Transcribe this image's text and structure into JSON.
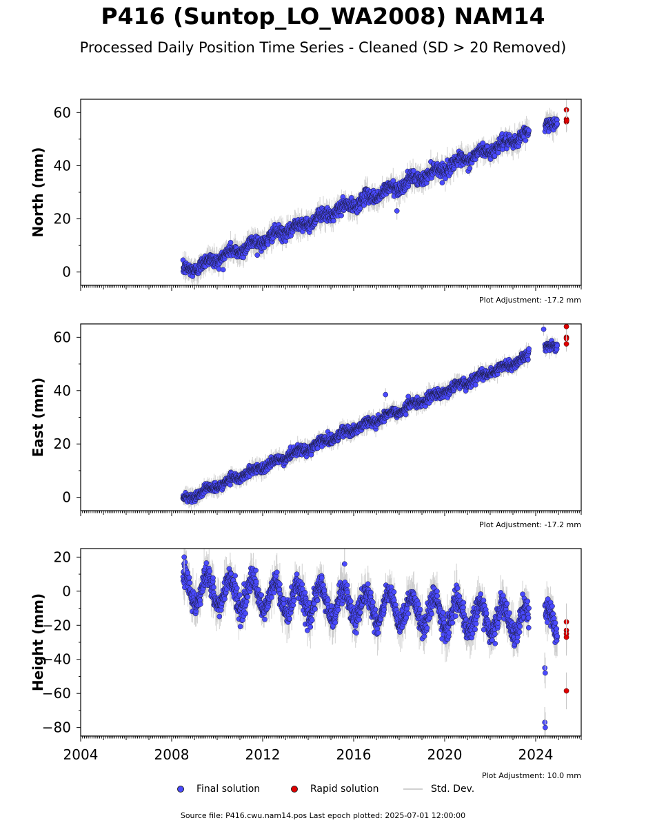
{
  "header": {
    "title": "P416 (Suntop_LO_WA2008) NAM14",
    "subtitle": "Processed Daily Position Time Series - Cleaned (SD > 20 Removed)"
  },
  "legend": {
    "final": "Final solution",
    "rapid": "Rapid solution",
    "std": "Std. Dev."
  },
  "source": "Source file: P416.cwu.nam14.pos  Last epoch plotted: 2025-07-01 12:00:00",
  "colors": {
    "final": "#4a4aff",
    "rapid": "#e00000",
    "std": "#c8c8c8"
  },
  "chart_data": [
    {
      "type": "scatter",
      "ylabel": "North (mm)",
      "xlim": [
        2004,
        2026
      ],
      "ylim": [
        -5,
        65
      ],
      "yticks": [
        0,
        20,
        40,
        60
      ],
      "adjustment": "Plot Adjustment: -17.2 mm",
      "final_trend": {
        "x_start": 2008.5,
        "y_start": 0,
        "x_end": 2024.9,
        "y_end": 56
      },
      "final_range": [
        2008.5,
        2024.95
      ],
      "gap": [
        2023.7,
        2024.4
      ],
      "noise_mm": 2.2,
      "seasonal_mm": 1.2,
      "rapid": [
        {
          "x": 2025.35,
          "y": 61
        },
        {
          "x": 2025.35,
          "y": 57.5
        },
        {
          "x": 2025.35,
          "y": 56.5
        },
        {
          "x": 2025.36,
          "y": 57
        }
      ],
      "outliers": [
        {
          "x": 2017.9,
          "y": 23
        }
      ]
    },
    {
      "type": "scatter",
      "ylabel": "East (mm)",
      "xlim": [
        2004,
        2026
      ],
      "ylim": [
        -5,
        65
      ],
      "yticks": [
        0,
        20,
        40,
        60
      ],
      "adjustment": "Plot Adjustment: -17.2 mm",
      "final_trend": {
        "x_start": 2008.5,
        "y_start": -1,
        "x_end": 2024.9,
        "y_end": 57
      },
      "final_range": [
        2008.5,
        2024.95
      ],
      "gap": [
        2023.7,
        2024.4
      ],
      "noise_mm": 1.6,
      "seasonal_mm": 0.8,
      "rapid": [
        {
          "x": 2025.35,
          "y": 64
        },
        {
          "x": 2025.35,
          "y": 60
        },
        {
          "x": 2025.35,
          "y": 59.5
        },
        {
          "x": 2025.35,
          "y": 57.5
        }
      ],
      "outliers": [
        {
          "x": 2017.4,
          "y": 38.5
        },
        {
          "x": 2024.35,
          "y": 63
        }
      ]
    },
    {
      "type": "scatter",
      "ylabel": "Height (mm)",
      "xlim": [
        2004,
        2026
      ],
      "ylim": [
        -85,
        25
      ],
      "yticks": [
        -80,
        -60,
        -40,
        -20,
        0,
        20
      ],
      "xticks": [
        2004,
        2008,
        2012,
        2016,
        2020,
        2024
      ],
      "adjustment": "Plot Adjustment: 10.0 mm",
      "final_trend": {
        "x_start": 2008.5,
        "y_start": 2,
        "x_end": 2024.9,
        "y_end": -20
      },
      "final_range": [
        2008.5,
        2024.95
      ],
      "gap": [
        2023.7,
        2024.4
      ],
      "noise_mm": 6,
      "seasonal_mm": 9,
      "rapid": [
        {
          "x": 2025.35,
          "y": -18
        },
        {
          "x": 2025.35,
          "y": -23
        },
        {
          "x": 2025.35,
          "y": -25
        },
        {
          "x": 2025.35,
          "y": -27
        },
        {
          "x": 2025.35,
          "y": -58.5
        }
      ],
      "outliers": [
        {
          "x": 2008.55,
          "y": 20
        },
        {
          "x": 2024.4,
          "y": -77
        },
        {
          "x": 2024.42,
          "y": -80
        },
        {
          "x": 2024.4,
          "y": -45
        },
        {
          "x": 2024.42,
          "y": -48
        },
        {
          "x": 2015.6,
          "y": 16
        }
      ]
    }
  ]
}
